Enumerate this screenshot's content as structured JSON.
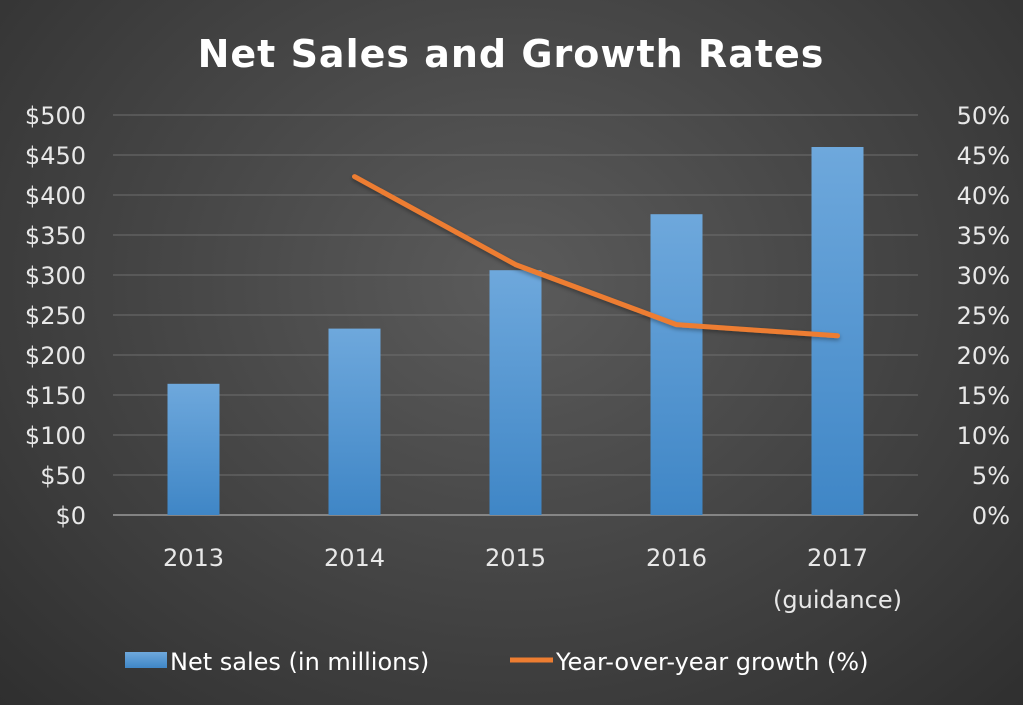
{
  "chart_data": {
    "type": "bar",
    "title": "Net Sales and Growth Rates",
    "categories": [
      [
        "2013"
      ],
      [
        "2014"
      ],
      [
        "2015"
      ],
      [
        "2016"
      ],
      [
        "2017",
        "(guidance)"
      ]
    ],
    "series": [
      {
        "name": "Net sales (in millions)",
        "type": "bar",
        "axis": "left",
        "color": "#5b9bd5",
        "values": [
          164,
          233,
          306,
          376,
          460
        ]
      },
      {
        "name": "Year-over-year growth (%)",
        "type": "line",
        "axis": "right",
        "color": "#ed7d31",
        "values": [
          null,
          42.3,
          31.3,
          23.8,
          22.4
        ]
      }
    ],
    "left_axis": {
      "min": 0,
      "max": 500,
      "step": 50,
      "tick_labels": [
        "$0",
        "$50",
        "$100",
        "$150",
        "$200",
        "$250",
        "$300",
        "$350",
        "$400",
        "$450",
        "$500"
      ]
    },
    "right_axis": {
      "min": 0,
      "max": 50,
      "step": 5,
      "tick_labels": [
        "0%",
        "5%",
        "10%",
        "15%",
        "20%",
        "25%",
        "30%",
        "35%",
        "40%",
        "45%",
        "50%"
      ]
    },
    "grid": true,
    "legend": "bottom",
    "background_color": "#474747",
    "gridline_color": "#6e6e6e"
  }
}
